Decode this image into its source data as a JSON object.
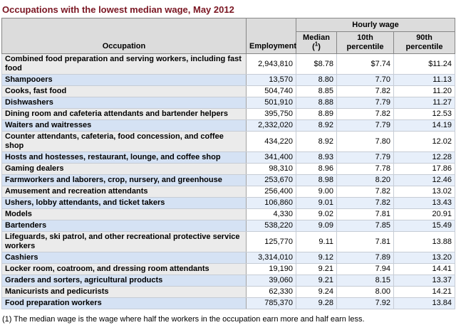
{
  "title": "Occupations with the lowest median wage, May 2012",
  "footnote": "(1) The median wage is the wage where half the workers in the occupation earn more and half earn less.",
  "colors": {
    "title_text": "#7a1622",
    "header_bg": "#dcdcdc",
    "header_border": "#868686",
    "cell_border": "#c6ccd5",
    "row_gray_label_bg": "#ebebeb",
    "row_gray_value_bg": "#ffffff",
    "row_blue_label_bg": "#d5e2f4",
    "row_blue_value_bg": "#e7effa"
  },
  "chart_data": {
    "type": "table",
    "title": "Occupations with the lowest median wage, May 2012",
    "header": {
      "occupation": "Occupation",
      "employment": "Employment",
      "hourly_wage": "Hourly wage",
      "median_line1": "Median",
      "median_paren_open": "(",
      "median_sup": "1",
      "median_paren_close": ")",
      "p10": "10th percentile",
      "p90": "90th percentile"
    },
    "rows": [
      {
        "occupation": "Combined food preparation and serving workers, including fast food",
        "employment": "2,943,810",
        "median": "$8.78",
        "p10": "$7.74",
        "p90": "$11.24"
      },
      {
        "occupation": "Shampooers",
        "employment": "13,570",
        "median": "8.80",
        "p10": "7.70",
        "p90": "11.13"
      },
      {
        "occupation": "Cooks, fast food",
        "employment": "504,740",
        "median": "8.85",
        "p10": "7.82",
        "p90": "11.20"
      },
      {
        "occupation": "Dishwashers",
        "employment": "501,910",
        "median": "8.88",
        "p10": "7.79",
        "p90": "11.27"
      },
      {
        "occupation": "Dining room and cafeteria attendants and bartender helpers",
        "employment": "395,750",
        "median": "8.89",
        "p10": "7.82",
        "p90": "12.53"
      },
      {
        "occupation": "Waiters and waitresses",
        "employment": "2,332,020",
        "median": "8.92",
        "p10": "7.79",
        "p90": "14.19"
      },
      {
        "occupation": "Counter attendants, cafeteria, food concession, and coffee shop",
        "employment": "434,220",
        "median": "8.92",
        "p10": "7.80",
        "p90": "12.02"
      },
      {
        "occupation": "Hosts and hostesses, restaurant, lounge, and coffee shop",
        "employment": "341,400",
        "median": "8.93",
        "p10": "7.79",
        "p90": "12.28"
      },
      {
        "occupation": "Gaming dealers",
        "employment": "98,310",
        "median": "8.96",
        "p10": "7.78",
        "p90": "17.86"
      },
      {
        "occupation": "Farmworkers and laborers, crop, nursery, and greenhouse",
        "employment": "253,670",
        "median": "8.98",
        "p10": "8.20",
        "p90": "12.46"
      },
      {
        "occupation": "Amusement and recreation attendants",
        "employment": "256,400",
        "median": "9.00",
        "p10": "7.82",
        "p90": "13.02"
      },
      {
        "occupation": "Ushers, lobby attendants, and ticket takers",
        "employment": "106,860",
        "median": "9.01",
        "p10": "7.82",
        "p90": "13.43"
      },
      {
        "occupation": "Models",
        "employment": "4,330",
        "median": "9.02",
        "p10": "7.81",
        "p90": "20.91"
      },
      {
        "occupation": "Bartenders",
        "employment": "538,220",
        "median": "9.09",
        "p10": "7.85",
        "p90": "15.49"
      },
      {
        "occupation": "Lifeguards, ski patrol, and other recreational protective service workers",
        "employment": "125,770",
        "median": "9.11",
        "p10": "7.81",
        "p90": "13.88"
      },
      {
        "occupation": "Cashiers",
        "employment": "3,314,010",
        "median": "9.12",
        "p10": "7.89",
        "p90": "13.20"
      },
      {
        "occupation": "Locker room, coatroom, and dressing room attendants",
        "employment": "19,190",
        "median": "9.21",
        "p10": "7.94",
        "p90": "14.41"
      },
      {
        "occupation": "Graders and sorters, agricultural products",
        "employment": "39,060",
        "median": "9.21",
        "p10": "8.15",
        "p90": "13.37"
      },
      {
        "occupation": "Manicurists and pedicurists",
        "employment": "62,330",
        "median": "9.24",
        "p10": "8.00",
        "p90": "14.21"
      },
      {
        "occupation": "Food preparation workers",
        "employment": "785,370",
        "median": "9.28",
        "p10": "7.92",
        "p90": "13.84"
      }
    ]
  }
}
